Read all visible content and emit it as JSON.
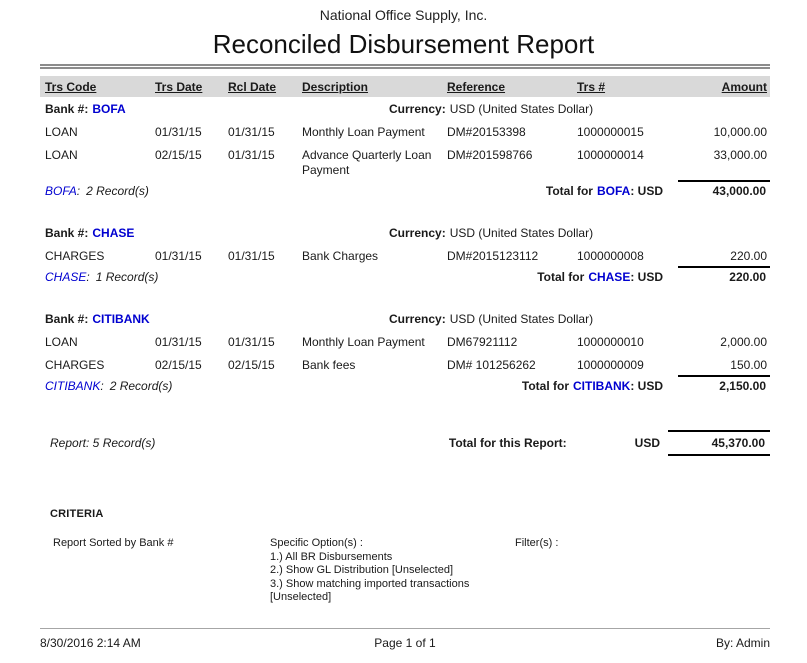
{
  "header": {
    "company": "National Office Supply, Inc.",
    "title": "Reconciled Disbursement Report"
  },
  "columns": [
    "Trs Code",
    "Trs Date",
    "Rcl Date",
    "Description",
    "Reference",
    "Trs #",
    "Amount"
  ],
  "labels": {
    "bank_no": "Bank #:",
    "currency": "Currency:",
    "total_for": "Total for",
    "total_suffix": ": USD",
    "colon": ":"
  },
  "currency_value": "USD (United States Dollar)",
  "sections": [
    {
      "bank": "BOFA",
      "records": "2 Record(s)",
      "total": "43,000.00",
      "rows": [
        {
          "code": "LOAN",
          "trs_date": "01/31/15",
          "rcl_date": "01/31/15",
          "desc": "Monthly Loan Payment",
          "ref": "DM#20153398",
          "trs_no": "1000000015",
          "amount": "10,000.00"
        },
        {
          "code": "LOAN",
          "trs_date": "02/15/15",
          "rcl_date": "01/31/15",
          "desc": "Advance Quarterly Loan Payment",
          "ref": "DM#201598766",
          "trs_no": "1000000014",
          "amount": "33,000.00"
        }
      ]
    },
    {
      "bank": "CHASE",
      "records": "1 Record(s)",
      "total": "220.00",
      "rows": [
        {
          "code": "CHARGES",
          "trs_date": "01/31/15",
          "rcl_date": "01/31/15",
          "desc": "Bank Charges",
          "ref": "DM#2015123112",
          "trs_no": "1000000008",
          "amount": "220.00"
        }
      ]
    },
    {
      "bank": "CITIBANK",
      "records": "2 Record(s)",
      "total": "2,150.00",
      "rows": [
        {
          "code": "LOAN",
          "trs_date": "01/31/15",
          "rcl_date": "01/31/15",
          "desc": "Monthly Loan Payment",
          "ref": "DM67921112",
          "trs_no": "1000000010",
          "amount": "2,000.00"
        },
        {
          "code": "CHARGES",
          "trs_date": "02/15/15",
          "rcl_date": "02/15/15",
          "desc": "Bank fees",
          "ref": "DM# 101256262",
          "trs_no": "1000000009",
          "amount": "150.00"
        }
      ]
    }
  ],
  "report_total": {
    "records": "Report: 5 Record(s)",
    "label": "Total for this Report:",
    "currency": "USD",
    "amount": "45,370.00"
  },
  "criteria": {
    "heading": "CRITERIA",
    "sorted_by": "Report Sorted by Bank #",
    "options_label": "Specific Option(s) :",
    "options": [
      "1.) All BR Disbursements",
      "2.) Show GL Distribution [Unselected]",
      "3.) Show matching imported transactions",
      "[Unselected]"
    ],
    "filters_label": "Filter(s) :"
  },
  "footer": {
    "datetime": "8/30/2016 2:14 AM",
    "page": "Page 1 of 1",
    "by": "By: Admin"
  },
  "colors": {
    "accent_blue": "#0000d0",
    "header_band_gray": "#d9d9d9",
    "rule_gray": "#8c8c8c"
  }
}
